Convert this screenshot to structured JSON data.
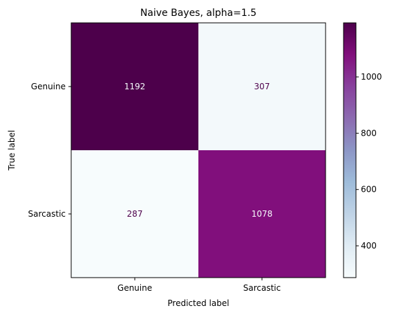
{
  "chart_data": {
    "type": "heatmap",
    "title": "Naive Bayes, alpha=1.5",
    "xlabel": "Predicted label",
    "ylabel": "True label",
    "x_categories": [
      "Genuine",
      "Sarcastic"
    ],
    "y_categories": [
      "Genuine",
      "Sarcastic"
    ],
    "values": [
      [
        1192,
        307
      ],
      [
        287,
        1078
      ]
    ],
    "colormap": "BuPu",
    "color_range": [
      287,
      1192
    ],
    "colorbar_ticks": [
      400,
      600,
      800,
      1000
    ],
    "colorbar_tick_labels": [
      "400",
      "600",
      "800",
      "1000"
    ],
    "colors": {
      "low": "#f7fcfd",
      "high": "#4d004b",
      "text_on_dark": "#f7fcfd",
      "text_on_light": "#4d004b"
    }
  }
}
